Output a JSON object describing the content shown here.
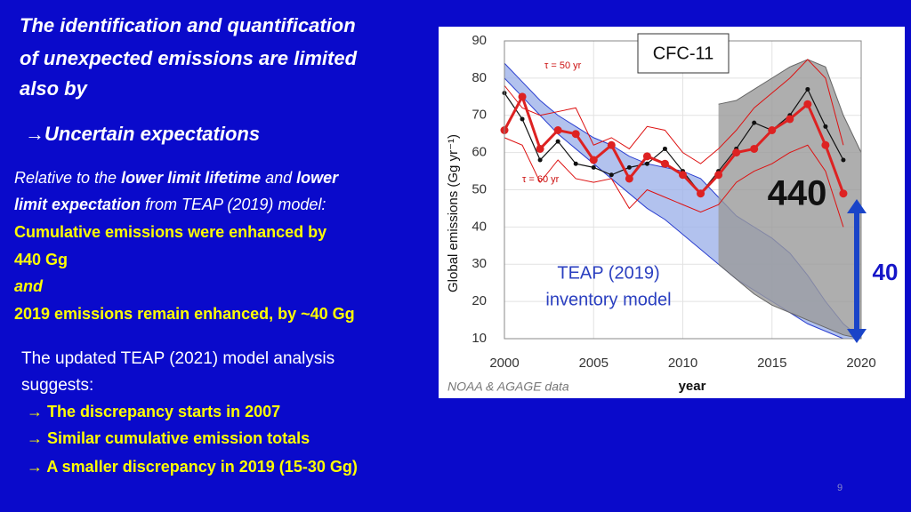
{
  "slide": {
    "title_lines": [
      "The identification and quantification",
      "of unexpected emissions are limited",
      "also by"
    ],
    "subheading": "→Uncertain expectations",
    "paragraph": {
      "line1": [
        "Relative to the ",
        "lower limit lifetime",
        " and ",
        "lower"
      ],
      "line2": [
        "limit expectation",
        " from TEAP (2019) model:"
      ]
    },
    "highlights": [
      "Cumulative emissions were enhanced by",
      "440 Gg",
      "and",
      "2019 emissions remain enhanced, by ~40 Gg"
    ],
    "update": {
      "lines": [
        "The updated TEAP (2021) model analysis",
        "suggests:"
      ],
      "bullets": [
        "→ The discrepancy starts in 2007",
        "→ Similar cumulative emission totals",
        "→ A smaller discrepancy in 2019 (15-30 Gg)"
      ]
    },
    "page_number": "9"
  },
  "chart_data": {
    "type": "line",
    "x_label": "year",
    "y_label": "Global emissions (Gg yr⁻¹)",
    "xlim": [
      2000,
      2020
    ],
    "xticks": [
      2000,
      2005,
      2010,
      2015,
      2020
    ],
    "ylim": [
      10,
      90
    ],
    "yticks": [
      10,
      20,
      30,
      40,
      50,
      60,
      70,
      80,
      90
    ],
    "grid": true,
    "annotations": {
      "label_box": "CFC-11",
      "tau_50": "τ = 50 yr",
      "tau_60": "τ = 60 yr",
      "cumulative": "440",
      "difference": "40",
      "model": [
        "TEAP (2019)",
        "inventory model"
      ],
      "source": "NOAA & AGAGE data"
    },
    "bands": [
      {
        "color": "#9fb3ea",
        "edge": "#2b3fd0",
        "x": [
          2000,
          2001,
          2002,
          2003,
          2004,
          2005,
          2006,
          2007,
          2008,
          2009,
          2010,
          2011,
          2012,
          2013,
          2014,
          2015,
          2016,
          2017,
          2018,
          2019,
          2020
        ],
        "upper": [
          84,
          79,
          74,
          70,
          67,
          64,
          62,
          59,
          57,
          56,
          55,
          53,
          48,
          43,
          40,
          37,
          33,
          27,
          20,
          14,
          10
        ],
        "lower": [
          80,
          75,
          70,
          65,
          61,
          57,
          53,
          49,
          45,
          42,
          38,
          34,
          30,
          26,
          23,
          20,
          17,
          14,
          12,
          10,
          10
        ]
      },
      {
        "color": "#9a9a9a",
        "edge": "#666666",
        "x": [
          2012,
          2013,
          2014,
          2015,
          2016,
          2017,
          2018,
          2019,
          2020
        ],
        "upper": [
          73,
          74,
          77,
          80,
          83,
          85,
          83,
          70,
          60
        ],
        "lower": [
          30,
          26,
          22,
          19,
          17,
          15,
          13,
          11,
          10
        ]
      }
    ],
    "series": [
      {
        "color": "#dd1111",
        "width": 1,
        "points": false,
        "x": [
          2000,
          2001,
          2002,
          2003,
          2004,
          2005,
          2006,
          2007,
          2008,
          2009,
          2010,
          2011,
          2012,
          2013,
          2014,
          2015,
          2016,
          2017,
          2018,
          2019
        ],
        "values": [
          78,
          72,
          70,
          71,
          72,
          62,
          64,
          61,
          67,
          66,
          60,
          57,
          61,
          66,
          72,
          76,
          80,
          85,
          80,
          62
        ]
      },
      {
        "color": "#dd1111",
        "width": 1,
        "points": false,
        "x": [
          2000,
          2001,
          2002,
          2003,
          2004,
          2005,
          2006,
          2007,
          2008,
          2009,
          2010,
          2011,
          2012,
          2013,
          2014,
          2015,
          2016,
          2017,
          2018,
          2019
        ],
        "values": [
          64,
          62,
          52,
          58,
          53,
          52,
          53,
          45,
          50,
          48,
          46,
          44,
          46,
          52,
          55,
          57,
          60,
          62,
          55,
          40
        ]
      },
      {
        "color": "#111111",
        "width": 1.2,
        "points": true,
        "x": [
          2000,
          2001,
          2002,
          2003,
          2004,
          2005,
          2006,
          2007,
          2008,
          2009,
          2010,
          2011,
          2012,
          2013,
          2014,
          2015,
          2016,
          2017,
          2018,
          2019
        ],
        "values": [
          76,
          69,
          58,
          63,
          57,
          56,
          54,
          56,
          57,
          61,
          55,
          49,
          55,
          61,
          68,
          66,
          70,
          77,
          67,
          58
        ]
      },
      {
        "color": "#dd2222",
        "width": 3,
        "points": true,
        "x": [
          2000,
          2001,
          2002,
          2003,
          2004,
          2005,
          2006,
          2007,
          2008,
          2009,
          2010,
          2011,
          2012,
          2013,
          2014,
          2015,
          2016,
          2017,
          2018,
          2019
        ],
        "values": [
          66,
          75,
          61,
          66,
          65,
          58,
          62,
          53,
          59,
          57,
          54,
          49,
          54,
          60,
          61,
          66,
          69,
          73,
          62,
          49
        ]
      }
    ]
  }
}
